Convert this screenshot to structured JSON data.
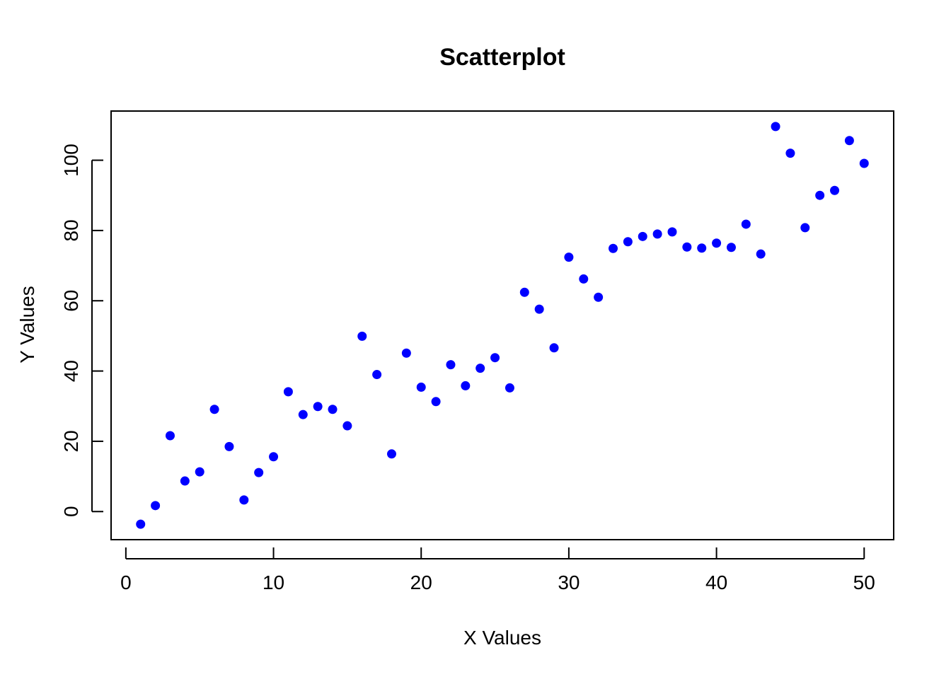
{
  "chart_data": {
    "type": "scatter",
    "title": "Scatterplot",
    "xlabel": "X Values",
    "ylabel": "Y Values",
    "xlim": [
      -1,
      52
    ],
    "ylim": [
      -8,
      114
    ],
    "x_ticks": [
      0,
      10,
      20,
      30,
      40,
      50
    ],
    "x_tick_labels": [
      "0",
      "10",
      "20",
      "30",
      "40",
      "50"
    ],
    "y_ticks": [
      0,
      20,
      40,
      60,
      80,
      100
    ],
    "y_tick_labels": [
      "0",
      "20",
      "40",
      "60",
      "80",
      "100"
    ],
    "grid": false,
    "marker_color": "#0000ff",
    "series": [
      {
        "x": [
          1,
          2,
          3,
          4,
          5,
          6,
          7,
          8,
          9,
          10,
          11,
          12,
          13,
          14,
          15,
          16,
          17,
          18,
          19,
          20,
          21,
          22,
          23,
          24,
          25,
          26,
          27,
          28,
          29,
          30,
          31,
          32,
          33,
          34,
          35,
          36,
          37,
          38,
          39,
          40,
          41,
          42,
          43,
          44,
          45,
          46,
          47,
          48,
          49,
          50
        ],
        "y": [
          -3.6,
          1.7,
          21.6,
          8.7,
          11.3,
          29.1,
          18.5,
          3.3,
          11.1,
          15.6,
          34.1,
          27.6,
          29.9,
          29.1,
          24.4,
          49.9,
          39.0,
          16.4,
          45.1,
          35.4,
          31.3,
          41.8,
          35.8,
          40.8,
          43.8,
          35.2,
          62.4,
          57.6,
          46.6,
          72.4,
          66.2,
          61.0,
          74.9,
          76.8,
          78.3,
          79.0,
          79.6,
          75.3,
          75.0,
          76.4,
          75.2,
          81.8,
          73.3,
          109.6,
          102.0,
          80.8,
          90.0,
          91.4,
          105.6,
          99.1
        ]
      }
    ]
  }
}
